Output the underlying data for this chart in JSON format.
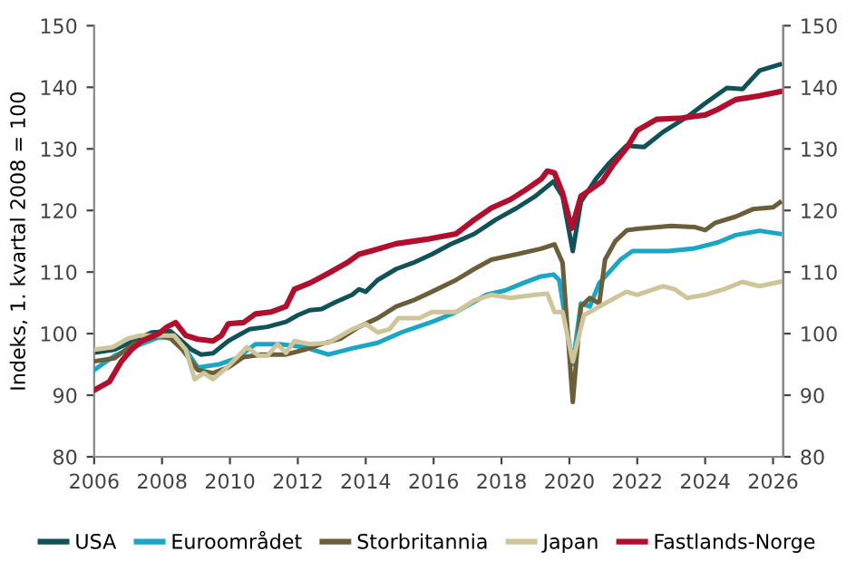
{
  "chart_data": {
    "type": "line",
    "ylabel": "Indeks, 1. kvartal 2008 = 100",
    "xlim": [
      2006,
      2026.3
    ],
    "xticks": [
      2006,
      2008,
      2010,
      2012,
      2014,
      2016,
      2018,
      2020,
      2022,
      2024,
      2026
    ],
    "ylim": [
      80,
      150
    ],
    "yticks": [
      80,
      90,
      100,
      110,
      120,
      130,
      140,
      150
    ],
    "y2lim": [
      80,
      150
    ],
    "y2ticks": [
      80,
      90,
      100,
      110,
      120,
      130,
      140,
      150
    ],
    "grid": false,
    "legend": "bottom",
    "marker": "none",
    "line_style": "solid",
    "series": [
      {
        "name": "USA",
        "color": "#0f5257",
        "x": [
          2006,
          2006.6,
          2007.15,
          2007.7,
          2008.25,
          2008.5,
          2008.87,
          2009.15,
          2009.5,
          2009.95,
          2010.57,
          2011.1,
          2011.65,
          2012.0,
          2012.35,
          2012.7,
          2013.1,
          2013.6,
          2013.8,
          2014.0,
          2014.35,
          2014.9,
          2015.4,
          2015.95,
          2016.5,
          2017.2,
          2017.83,
          2018.45,
          2018.99,
          2019.53,
          2019.8,
          2020.1,
          2020.34,
          2020.78,
          2021.14,
          2021.68,
          2022.2,
          2022.75,
          2023.47,
          2024.0,
          2024.64,
          2025.1,
          2025.6,
          2026.2
        ],
        "values": [
          96.9,
          97.4,
          98.8,
          100.2,
          100.4,
          99.2,
          97.4,
          96.6,
          96.8,
          98.8,
          100.7,
          101.1,
          101.9,
          103,
          103.8,
          104,
          105.1,
          106.3,
          107.2,
          106.8,
          108.7,
          110.5,
          111.5,
          112.9,
          114.5,
          116.2,
          118.5,
          120.4,
          122.3,
          124.7,
          122.3,
          113.4,
          121.4,
          125.1,
          127.5,
          130.5,
          130.3,
          132.7,
          135.2,
          137.4,
          139.9,
          139.7,
          142.7,
          143.7
        ]
      },
      {
        "name": "Euroområdet",
        "color": "#1aa6c4",
        "x": [
          2006,
          2006.6,
          2007.15,
          2007.9,
          2008.25,
          2008.7,
          2009.05,
          2009.67,
          2010.2,
          2010.75,
          2011.47,
          2012.2,
          2012.9,
          2013.6,
          2014.35,
          2015.05,
          2015.95,
          2016.66,
          2017.56,
          2018.1,
          2018.63,
          2019.17,
          2019.53,
          2019.7,
          2020.1,
          2020.34,
          2020.6,
          2020.88,
          2021.5,
          2021.86,
          2022.9,
          2023.65,
          2024.37,
          2024.9,
          2025.6,
          2026.2
        ],
        "values": [
          94.1,
          96.4,
          97.8,
          99.4,
          99.4,
          97.4,
          94.5,
          95,
          96,
          98.3,
          98.3,
          97.8,
          96.6,
          97.6,
          98.5,
          100.2,
          101.9,
          103.5,
          106.3,
          107,
          108.2,
          109.3,
          109.6,
          108.7,
          95,
          104.9,
          104.4,
          108.2,
          112,
          113.4,
          113.4,
          113.8,
          114.8,
          116,
          116.7,
          116.2
        ]
      },
      {
        "name": "Storbritannia",
        "color": "#6b5e3a",
        "x": [
          2006,
          2006.6,
          2007.15,
          2007.9,
          2008.25,
          2008.6,
          2009.05,
          2009.5,
          2009.95,
          2010.4,
          2010.93,
          2011.65,
          2012.2,
          2012.7,
          2013.26,
          2013.8,
          2014.35,
          2014.9,
          2015.4,
          2015.95,
          2016.66,
          2017.2,
          2017.7,
          2018.45,
          2019.17,
          2019.56,
          2019.8,
          2020.1,
          2020.34,
          2020.6,
          2020.88,
          2021.05,
          2021.35,
          2021.7,
          2022.0,
          2023.0,
          2023.7,
          2024.0,
          2024.3,
          2024.9,
          2025.4,
          2026.0,
          2026.2
        ],
        "values": [
          95.5,
          96,
          98.3,
          99.7,
          99.2,
          97.4,
          94.1,
          93.6,
          94.5,
          96.2,
          96.6,
          96.6,
          97.4,
          98.3,
          99.2,
          101.1,
          102.5,
          104.4,
          105.4,
          106.8,
          108.7,
          110.5,
          112,
          112.9,
          113.8,
          114.5,
          111.5,
          88.9,
          104.4,
          105.8,
          104.9,
          112,
          115,
          116.8,
          117,
          117.5,
          117.3,
          116.8,
          118,
          119,
          120.2,
          120.5,
          121.3
        ]
      },
      {
        "name": "Japan",
        "color": "#cfc59a",
        "x": [
          2006,
          2006.55,
          2007,
          2007.35,
          2007.9,
          2008.35,
          2008.7,
          2008.96,
          2009.23,
          2009.5,
          2009.95,
          2010.5,
          2010.85,
          2011.1,
          2011.4,
          2011.65,
          2011.9,
          2012.35,
          2012.9,
          2013.6,
          2014.0,
          2014.35,
          2014.7,
          2014.96,
          2015.58,
          2015.95,
          2016.66,
          2017.2,
          2017.7,
          2018.27,
          2018.99,
          2019.35,
          2019.56,
          2019.8,
          2020.1,
          2020.43,
          2020.88,
          2021.68,
          2022.0,
          2022.75,
          2023.1,
          2023.47,
          2024.0,
          2024.55,
          2025.1,
          2025.6,
          2026.2
        ],
        "values": [
          97.4,
          97.8,
          99.2,
          99.7,
          99.7,
          99.7,
          97.4,
          92.6,
          93.6,
          92.6,
          94.7,
          97.8,
          96.4,
          96.4,
          98.3,
          96.9,
          98.8,
          98.3,
          98.5,
          100.7,
          101.6,
          100.2,
          100.7,
          102.5,
          102.5,
          103.5,
          103.5,
          105.4,
          106.3,
          105.8,
          106.3,
          106.5,
          103.5,
          103.5,
          95.5,
          103,
          104.4,
          106.8,
          106.3,
          107.7,
          107.2,
          105.8,
          106.3,
          107.2,
          108.4,
          107.7,
          108.4
        ]
      },
      {
        "name": "Fastlands-Norge",
        "color": "#b0102e",
        "x": [
          2006,
          2006.45,
          2006.8,
          2007.1,
          2007.4,
          2007.9,
          2008.15,
          2008.4,
          2008.7,
          2009.05,
          2009.5,
          2009.75,
          2009.95,
          2010.4,
          2010.75,
          2011.2,
          2011.65,
          2011.9,
          2012.35,
          2012.9,
          2013.45,
          2013.8,
          2014.15,
          2014.9,
          2015.77,
          2016.66,
          2017.2,
          2017.7,
          2018.27,
          2018.7,
          2019.17,
          2019.35,
          2019.56,
          2019.8,
          2020.07,
          2020.34,
          2020.6,
          2020.96,
          2021.3,
          2021.68,
          2022.0,
          2022.57,
          2023.3,
          2024.0,
          2024.37,
          2024.9,
          2025.6,
          2026.2
        ],
        "values": [
          90.8,
          92.2,
          95.5,
          97.4,
          98.8,
          100,
          101.1,
          101.8,
          99.7,
          99.1,
          98.8,
          99.7,
          101.6,
          101.8,
          103.2,
          103.5,
          104.4,
          107.2,
          108.2,
          109.8,
          111.5,
          112.9,
          113.4,
          114.6,
          115.3,
          116.2,
          118.5,
          120.4,
          121.8,
          123.3,
          125.1,
          126.4,
          126.1,
          122.8,
          117.1,
          122.3,
          123.3,
          124.7,
          127.5,
          130.1,
          133,
          134.8,
          135,
          135.5,
          136.4,
          138,
          138.6,
          139.3
        ]
      }
    ]
  }
}
